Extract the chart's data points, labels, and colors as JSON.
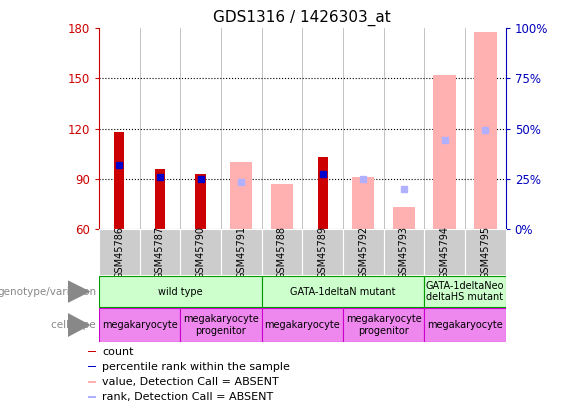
{
  "title": "GDS1316 / 1426303_at",
  "samples": [
    "GSM45786",
    "GSM45787",
    "GSM45790",
    "GSM45791",
    "GSM45788",
    "GSM45789",
    "GSM45792",
    "GSM45793",
    "GSM45794",
    "GSM45795"
  ],
  "ylim": [
    60,
    180
  ],
  "yticks": [
    60,
    90,
    120,
    150,
    180
  ],
  "y2lim": [
    0,
    100
  ],
  "y2ticks": [
    0,
    25,
    50,
    75,
    100
  ],
  "y2labels": [
    "0%",
    "25%",
    "50%",
    "75%",
    "100%"
  ],
  "count_values": [
    118,
    96,
    93,
    null,
    null,
    103,
    null,
    null,
    null,
    null
  ],
  "rank_values": [
    98,
    91,
    90,
    null,
    null,
    93,
    null,
    null,
    null,
    null
  ],
  "absent_value": [
    null,
    null,
    null,
    100,
    87,
    null,
    91,
    73,
    152,
    178
  ],
  "absent_rank": [
    null,
    null,
    null,
    88,
    null,
    null,
    90,
    84,
    113,
    119
  ],
  "bar_bottom": 60,
  "count_color": "#cc0000",
  "rank_color": "#0000cc",
  "absent_val_color": "#ffb0b0",
  "absent_rank_color": "#b0b0ff",
  "geno_groups": [
    {
      "label": "wild type",
      "start": 0,
      "end": 4
    },
    {
      "label": "GATA-1deltaN mutant",
      "start": 4,
      "end": 8
    },
    {
      "label": "GATA-1deltaNeo\ndeltaHS mutant",
      "start": 8,
      "end": 10
    }
  ],
  "cell_groups": [
    {
      "label": "megakaryocyte",
      "start": 0,
      "end": 2
    },
    {
      "label": "megakaryocyte\nprogenitor",
      "start": 2,
      "end": 4
    },
    {
      "label": "megakaryocyte",
      "start": 4,
      "end": 6
    },
    {
      "label": "megakaryocyte\nprogenitor",
      "start": 6,
      "end": 8
    },
    {
      "label": "megakaryocyte",
      "start": 8,
      "end": 10
    }
  ],
  "legend_items": [
    {
      "label": "count",
      "color": "#cc0000"
    },
    {
      "label": "percentile rank within the sample",
      "color": "#0000cc"
    },
    {
      "label": "value, Detection Call = ABSENT",
      "color": "#ffb0b0"
    },
    {
      "label": "rank, Detection Call = ABSENT",
      "color": "#b0b0ff"
    }
  ],
  "geno_color": "#ccffcc",
  "geno_border": "#009900",
  "cell_color": "#ee88ee",
  "cell_border": "#cc00cc",
  "sample_bg": "#cccccc",
  "left_label_color": "#888888",
  "y_left_color": "#cc0000",
  "y_right_color": "#0000bb"
}
